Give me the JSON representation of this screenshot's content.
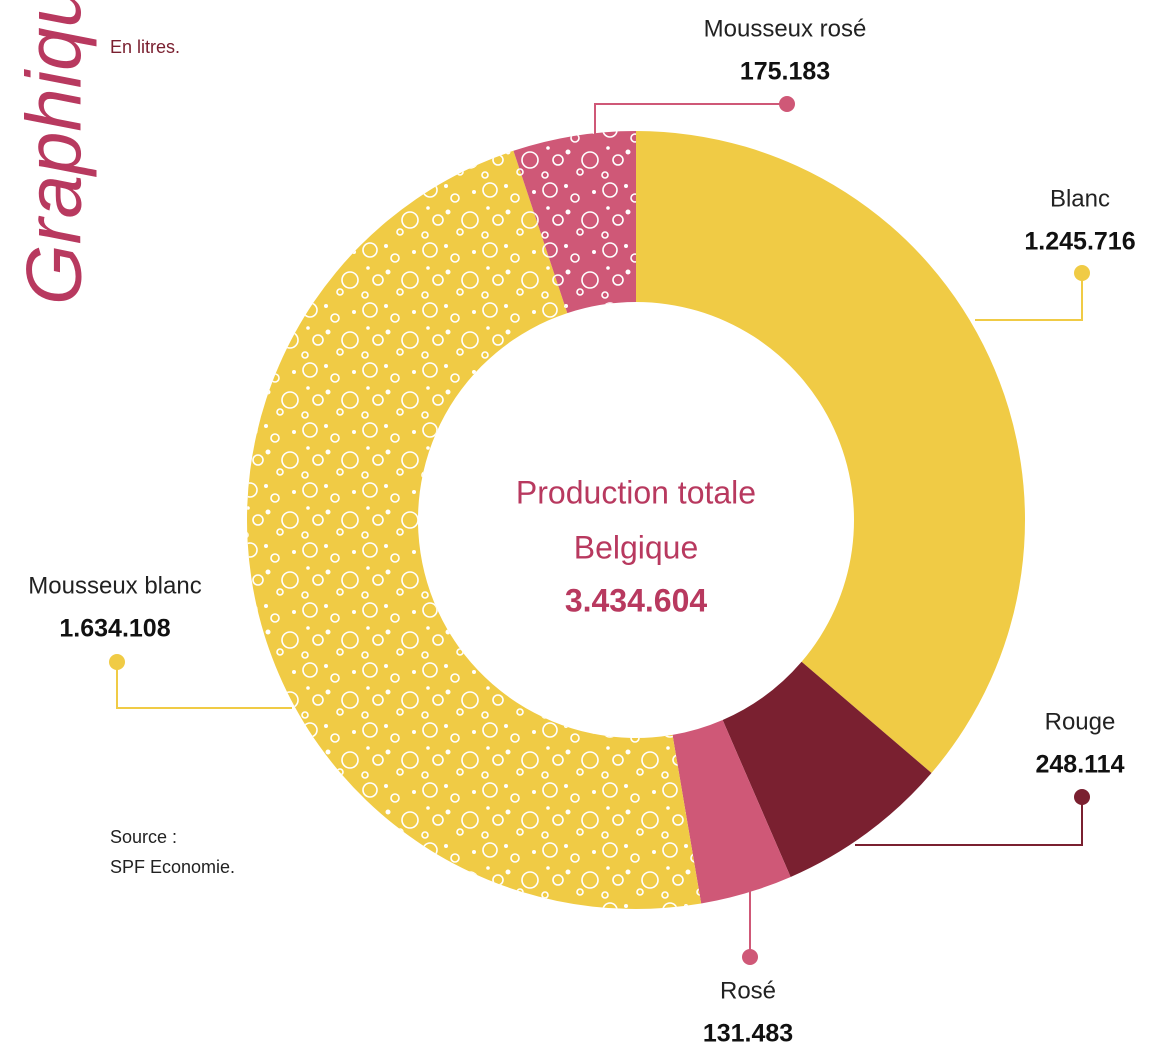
{
  "chart_data": {
    "type": "donut",
    "title": "Graphique",
    "subtitle": "En litres.",
    "source": [
      "Source :",
      "SPF Economie."
    ],
    "center_text": [
      "Production totale",
      "Belgique"
    ],
    "total": {
      "value": 3434604,
      "label": "3.434.604"
    },
    "categories": [
      "Blanc",
      "Rouge",
      "Rosé",
      "Mousseux blanc",
      "Mousseux rosé"
    ],
    "values": [
      1245716,
      248114,
      131483,
      1634108,
      175183
    ],
    "value_labels": [
      "1.245.716",
      "248.114",
      "131.483",
      "1.634.108",
      "175.183"
    ],
    "colors": [
      "#f0cb45",
      "#7a2030",
      "#cf5877",
      "#f0cb45",
      "#cf5877"
    ],
    "bubbles": [
      false,
      false,
      false,
      true,
      true
    ]
  }
}
